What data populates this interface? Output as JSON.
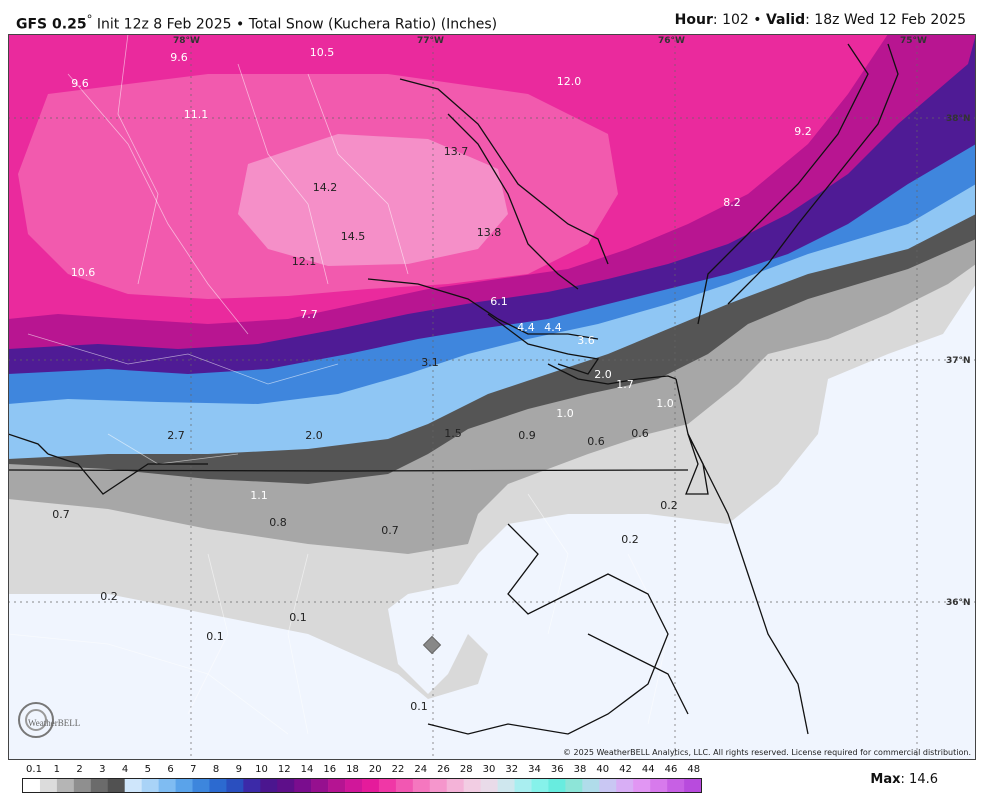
{
  "header": {
    "model": "GFS 0.25",
    "init": "Init 12z 8 Feb 2025",
    "product": "Total Snow (Kuchera Ratio) (Inches)",
    "hour_label": "Hour",
    "hour": "102",
    "valid_label": "Valid",
    "valid": "18z Wed 12 Feb 2025"
  },
  "grid_labels": {
    "lon_78": "78°W",
    "lon_77": "77°W",
    "lon_76": "76°W",
    "lon_75": "75°W",
    "lat_38": "38°N",
    "lat_37": "37°N",
    "lat_36": "36°N"
  },
  "values": [
    "10.5",
    "9.6",
    "9.6",
    "12.0",
    "11.1",
    "13.7",
    "9.2",
    "14.2",
    "8.2",
    "14.5",
    "13.8",
    "12.1",
    "10.6",
    "6.1",
    "7.7",
    "4.4",
    "4.4",
    "3.6",
    "3.1",
    "2.0",
    "1.7",
    "1.0",
    "1.0",
    "2.7",
    "2.0",
    "1.5",
    "0.9",
    "0.6",
    "0.6",
    "1.1",
    "0.7",
    "0.8",
    "0.7",
    "0.2",
    "0.2",
    "0.2",
    "0.1",
    "0.1",
    "0.1"
  ],
  "copyright": "© 2025 WeatherBELL Analytics, LLC. All rights reserved. License required for commercial distribution.",
  "logo_text": "WeatherBELL",
  "legend": {
    "ticks": [
      "0.1",
      "1",
      "2",
      "3",
      "4",
      "5",
      "6",
      "7",
      "8",
      "9",
      "10",
      "12",
      "14",
      "16",
      "18",
      "20",
      "22",
      "24",
      "26",
      "28",
      "30",
      "32",
      "34",
      "36",
      "38",
      "40",
      "42",
      "44",
      "46",
      "48"
    ],
    "colors": [
      "#ffffff",
      "#dcdcdc",
      "#b5b5b5",
      "#8f8f8f",
      "#6b6b6b",
      "#515151",
      "#cfe6fb",
      "#a9d3f7",
      "#7fbcf2",
      "#5aa3ea",
      "#3d86dd",
      "#2c6ad0",
      "#2a4fbf",
      "#3c2aa8",
      "#4b168f",
      "#5e0f8a",
      "#7a0d8e",
      "#96108f",
      "#b51492",
      "#d0179a",
      "#e51b9b",
      "#f037a6",
      "#f257b2",
      "#f577bf",
      "#f596cc",
      "#f4b3d8",
      "#f2cde3",
      "#e9dbe9",
      "#cfe7ee",
      "#a9eef0",
      "#86f2ea",
      "#68ecdf",
      "#8de5d8",
      "#b0dcea",
      "#c9c7f3",
      "#d8aef5",
      "#e196f3",
      "#d77aec",
      "#c760e4",
      "#b84bdd"
    ],
    "max_label": "Max",
    "max_value": "14.6"
  }
}
